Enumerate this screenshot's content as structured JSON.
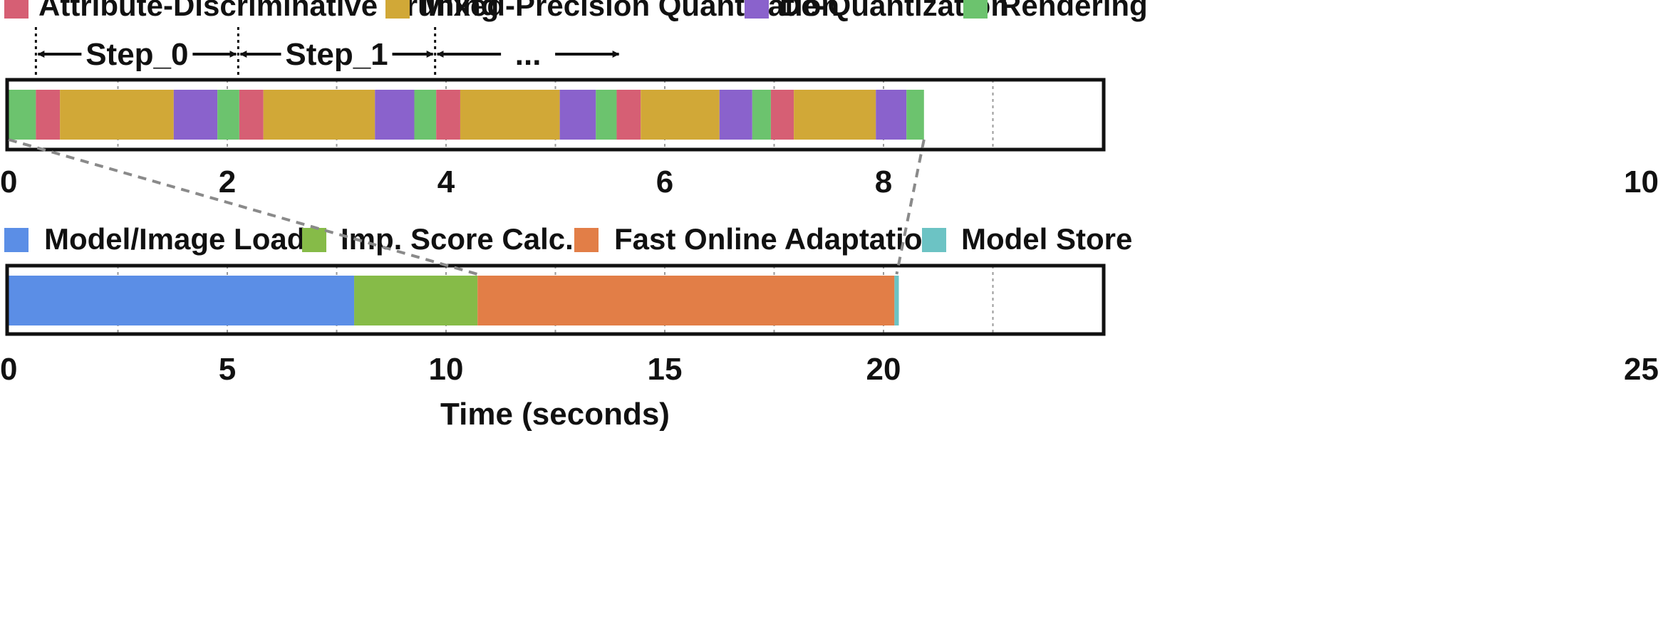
{
  "chart_data": [
    {
      "type": "timeline",
      "legend": [
        {
          "label": "Attribute-Discriminative Pruning",
          "color": "#d65f74"
        },
        {
          "label": "Mixed-Precision Quantization",
          "color": "#d1a837"
        },
        {
          "label": "De-Quantization",
          "color": "#8a62cc"
        },
        {
          "label": "Rendering",
          "color": "#6cc36e"
        }
      ],
      "step_labels": [
        "Step_0",
        "Step_1",
        "..."
      ],
      "step_boundaries": [
        0.25,
        2.1,
        3.9,
        5.6
      ],
      "xlim": [
        0,
        10
      ],
      "xticks": [
        "0",
        "2",
        "4",
        "6",
        "8",
        "10"
      ],
      "grid": true,
      "segments": [
        {
          "phase": "Rendering",
          "start": 0.0,
          "end": 0.25
        },
        {
          "phase": "Attribute-Discriminative Pruning",
          "start": 0.25,
          "end": 0.47
        },
        {
          "phase": "Mixed-Precision Quantization",
          "start": 0.47,
          "end": 1.51
        },
        {
          "phase": "De-Quantization",
          "start": 1.51,
          "end": 1.91
        },
        {
          "phase": "Rendering",
          "start": 1.91,
          "end": 2.11
        },
        {
          "phase": "Attribute-Discriminative Pruning",
          "start": 2.11,
          "end": 2.33
        },
        {
          "phase": "Mixed-Precision Quantization",
          "start": 2.33,
          "end": 3.35
        },
        {
          "phase": "De-Quantization",
          "start": 3.35,
          "end": 3.71
        },
        {
          "phase": "Rendering",
          "start": 3.71,
          "end": 3.91
        },
        {
          "phase": "Attribute-Discriminative Pruning",
          "start": 3.91,
          "end": 4.13
        },
        {
          "phase": "Mixed-Precision Quantization",
          "start": 4.13,
          "end": 5.04
        },
        {
          "phase": "De-Quantization",
          "start": 5.04,
          "end": 5.37
        },
        {
          "phase": "Rendering",
          "start": 5.37,
          "end": 5.56
        },
        {
          "phase": "Attribute-Discriminative Pruning",
          "start": 5.56,
          "end": 5.78
        },
        {
          "phase": "Mixed-Precision Quantization",
          "start": 5.78,
          "end": 6.5
        },
        {
          "phase": "De-Quantization",
          "start": 6.5,
          "end": 6.8
        },
        {
          "phase": "Rendering",
          "start": 6.8,
          "end": 6.97
        },
        {
          "phase": "Attribute-Discriminative Pruning",
          "start": 6.97,
          "end": 7.18
        },
        {
          "phase": "Mixed-Precision Quantization",
          "start": 7.18,
          "end": 7.93
        },
        {
          "phase": "De-Quantization",
          "start": 7.93,
          "end": 8.21
        },
        {
          "phase": "Rendering",
          "start": 8.21,
          "end": 8.37
        }
      ]
    },
    {
      "type": "timeline",
      "legend": [
        {
          "label": "Model/Image Load",
          "color": "#5b8ee6"
        },
        {
          "label": "Imp. Score Calc.",
          "color": "#86bb48"
        },
        {
          "label": "Fast Online Adaptation",
          "color": "#e27e47"
        },
        {
          "label": "Model Store",
          "color": "#6cc3c4"
        }
      ],
      "xlim": [
        0,
        25
      ],
      "xticks": [
        "0",
        "5",
        "10",
        "15",
        "20",
        "25"
      ],
      "xlabel": "Time (seconds)",
      "grid": true,
      "segments": [
        {
          "phase": "Model/Image Load",
          "start": 0.0,
          "end": 7.9
        },
        {
          "phase": "Imp. Score Calc.",
          "start": 7.9,
          "end": 10.72
        },
        {
          "phase": "Fast Online Adaptation",
          "start": 10.72,
          "end": 20.25
        },
        {
          "phase": "Model Store",
          "start": 20.25,
          "end": 20.35
        }
      ]
    }
  ]
}
